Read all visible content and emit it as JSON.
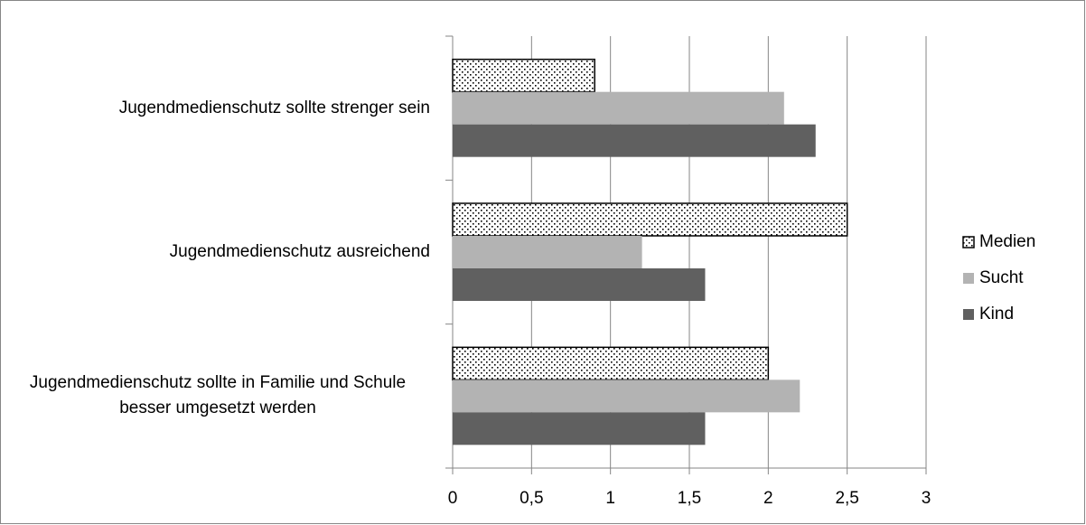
{
  "chart_data": {
    "type": "barh",
    "categories": [
      "Jugendmedienschutz sollte strenger sein",
      "Jugendmedienschutz ausreichend",
      "Jugendmedienschutz sollte in Familie und Schule besser umgesetzt werden"
    ],
    "series": [
      {
        "name": "Medien",
        "color": "#ffffff",
        "pattern": "dots",
        "values": [
          0.9,
          2.5,
          2.0
        ]
      },
      {
        "name": "Sucht",
        "color": "#b3b3b3",
        "values": [
          2.1,
          1.2,
          2.2
        ]
      },
      {
        "name": "Kind",
        "color": "#606060",
        "values": [
          2.3,
          1.6,
          1.6
        ]
      }
    ],
    "xlim": [
      0,
      3
    ],
    "xticks": [
      0,
      {
        "value": 0.5,
        "label": "0,5"
      },
      1,
      {
        "value": 1.5,
        "label": "1,5"
      },
      2,
      {
        "value": 2.5,
        "label": "2,5"
      },
      3
    ],
    "grid": true,
    "legend": "right"
  }
}
